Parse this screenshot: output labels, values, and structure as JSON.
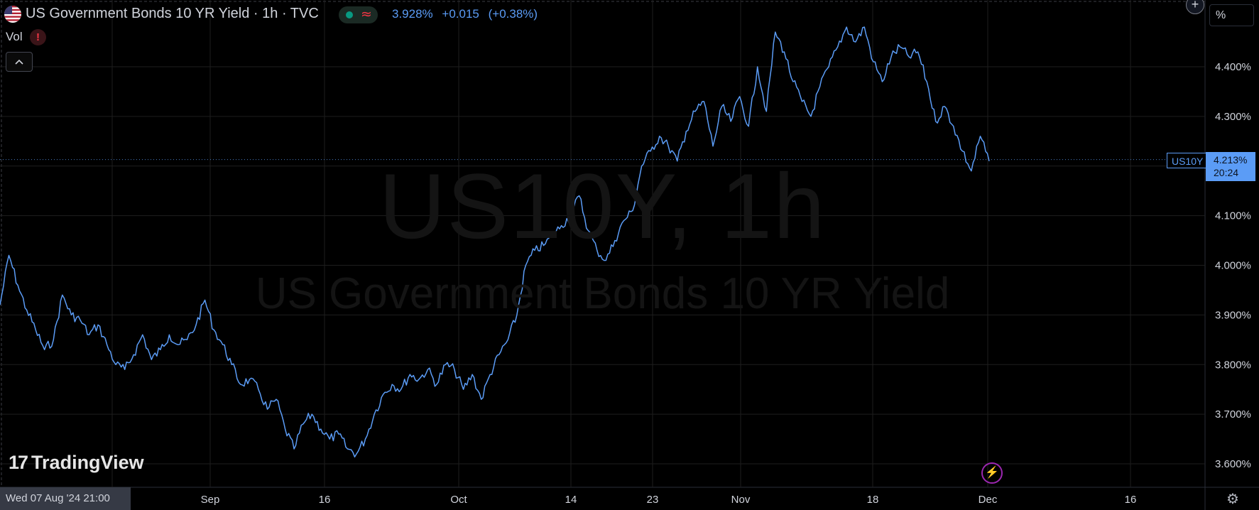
{
  "legend": {
    "title": "US Government Bonds 10 YR Yield · 1h · TVC",
    "price": "3.928%",
    "change": "+0.015",
    "change_pct": "(+0.38%)",
    "vol_label": "Vol"
  },
  "scale": {
    "unit_label": "%",
    "symbol_label": "US10Y",
    "last_value": "4.213%",
    "countdown": "20:24"
  },
  "watermark": {
    "symbol": "US10Y, 1h",
    "description": "US Government Bonds 10 YR Yield"
  },
  "crosshair": {
    "date_label": "Wed 07 Aug '24   21:00"
  },
  "branding": {
    "logo_text": "TradingView"
  },
  "colors": {
    "line": "#5b9cf6",
    "grid": "#1e1e1e",
    "background": "#000000",
    "up": "#089981",
    "down": "#f23645"
  },
  "chart_data": {
    "type": "line",
    "series": [
      {
        "values": [
          3.92,
          4.02,
          3.96,
          3.91,
          3.87,
          3.83,
          3.85,
          3.94,
          3.9,
          3.89,
          3.86,
          3.88,
          3.84,
          3.8,
          3.79,
          3.82,
          3.86,
          3.81,
          3.83,
          3.86,
          3.84,
          3.85,
          3.88,
          3.93,
          3.87,
          3.84,
          3.8,
          3.76,
          3.77,
          3.75,
          3.71,
          3.73,
          3.67,
          3.63,
          3.68,
          3.7,
          3.67,
          3.65,
          3.66,
          3.63,
          3.62,
          3.65,
          3.7,
          3.74,
          3.76,
          3.75,
          3.78,
          3.77,
          3.79,
          3.76,
          3.8,
          3.79,
          3.75,
          3.78,
          3.73,
          3.78,
          3.82,
          3.85,
          3.9,
          4.0,
          4.03,
          4.04,
          4.06,
          4.08,
          4.1,
          4.14,
          4.07,
          4.03,
          4.01,
          4.05,
          4.09,
          4.11,
          4.2,
          4.23,
          4.26,
          4.24,
          4.21,
          4.27,
          4.31,
          4.33,
          4.24,
          4.32,
          4.29,
          4.34,
          4.28,
          4.4,
          4.31,
          4.47,
          4.43,
          4.37,
          4.33,
          4.3,
          4.36,
          4.4,
          4.44,
          4.48,
          4.45,
          4.48,
          4.41,
          4.37,
          4.42,
          4.44,
          4.42,
          4.43,
          4.37,
          4.29,
          4.32,
          4.28,
          4.23,
          4.19,
          4.26,
          4.21
        ]
      }
    ],
    "y_ticks": [
      "4.400%",
      "4.300%",
      "4.100%",
      "4.000%",
      "3.900%",
      "3.800%",
      "3.700%",
      "3.600%"
    ],
    "x_ticks": [
      "Sep",
      "16",
      "Oct",
      "14",
      "23",
      "Nov",
      "18",
      "Dec",
      "16"
    ],
    "ylim": [
      3.58,
      4.51
    ],
    "grid": true,
    "last_value": 4.213
  }
}
